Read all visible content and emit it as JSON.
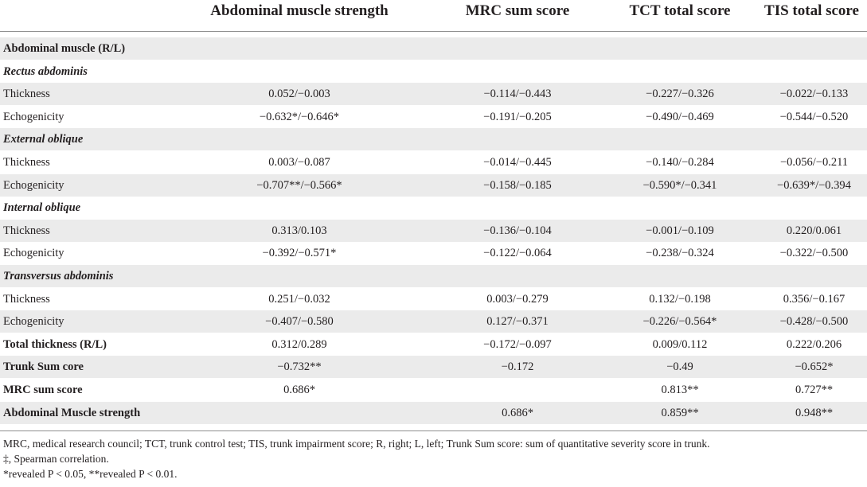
{
  "header": {
    "col1": "Abdominal muscle strength",
    "col2": "MRC sum score",
    "col3": "TCT total score",
    "col4": "TIS total score"
  },
  "rows": [
    {
      "label": "Abdominal muscle (R/L)",
      "style": "bold",
      "c1": "",
      "c2": "",
      "c3": "",
      "c4": ""
    },
    {
      "label": "Rectus abdominis",
      "style": "sub",
      "c1": "",
      "c2": "",
      "c3": "",
      "c4": ""
    },
    {
      "label": "Thickness",
      "style": "plain",
      "c1": "0.052/−0.003",
      "c2": "−0.114/−0.443",
      "c3": "−0.227/−0.326",
      "c4": "−0.022/−0.133"
    },
    {
      "label": "Echogenicity",
      "style": "plain",
      "c1": "−0.632*/−0.646*",
      "c2": "−0.191/−0.205",
      "c3": "−0.490/−0.469",
      "c4": "−0.544/−0.520"
    },
    {
      "label": "External oblique",
      "style": "sub",
      "c1": "",
      "c2": "",
      "c3": "",
      "c4": ""
    },
    {
      "label": "Thickness",
      "style": "plain",
      "c1": "0.003/−0.087",
      "c2": "−0.014/−0.445",
      "c3": "−0.140/−0.284",
      "c4": "−0.056/−0.211"
    },
    {
      "label": "Echogenicity",
      "style": "plain",
      "c1": "−0.707**/−0.566*",
      "c2": "−0.158/−0.185",
      "c3": "−0.590*/−0.341",
      "c4": "−0.639*/−0.394"
    },
    {
      "label": "Internal oblique",
      "style": "sub",
      "c1": "",
      "c2": "",
      "c3": "",
      "c4": ""
    },
    {
      "label": "Thickness",
      "style": "plain",
      "c1": "0.313/0.103",
      "c2": "−0.136/−0.104",
      "c3": "−0.001/−0.109",
      "c4": "0.220/0.061"
    },
    {
      "label": "Echogenicity",
      "style": "plain",
      "c1": "−0.392/−0.571*",
      "c2": "−0.122/−0.064",
      "c3": "−0.238/−0.324",
      "c4": "−0.322/−0.500"
    },
    {
      "label": "Transversus abdominis",
      "style": "sub",
      "c1": "",
      "c2": "",
      "c3": "",
      "c4": ""
    },
    {
      "label": "Thickness",
      "style": "plain",
      "c1": "0.251/−0.032",
      "c2": "0.003/−0.279",
      "c3": "0.132/−0.198",
      "c4": "0.356/−0.167"
    },
    {
      "label": "Echogenicity",
      "style": "plain",
      "c1": "−0.407/−0.580",
      "c2": "0.127/−0.371",
      "c3": "−0.226/−0.564*",
      "c4": "−0.428/−0.500"
    },
    {
      "label": "Total thickness (R/L)",
      "style": "bold",
      "c1": "0.312/0.289",
      "c2": "−0.172/−0.097",
      "c3": "0.009/0.112",
      "c4": "0.222/0.206"
    },
    {
      "label": "Trunk Sum core",
      "style": "bold",
      "c1": "−0.732**",
      "c2": "−0.172",
      "c3": "−0.49",
      "c4": "−0.652*"
    },
    {
      "label": "MRC sum score",
      "style": "bold",
      "c1": "0.686*",
      "c2": "",
      "c3": "0.813**",
      "c4": "0.727**"
    },
    {
      "label": "Abdominal Muscle strength",
      "style": "bold",
      "c1": "",
      "c2": "0.686*",
      "c3": "0.859**",
      "c4": "0.948**"
    }
  ],
  "notes": {
    "line1": "MRC, medical research council; TCT, trunk control test; TIS, trunk impairment score; R, right; L, left; Trunk Sum score: sum of quantitative severity score in trunk.",
    "line2": "‡, Spearman correlation.",
    "line3": "*revealed P < 0.05, **revealed P < 0.01."
  }
}
